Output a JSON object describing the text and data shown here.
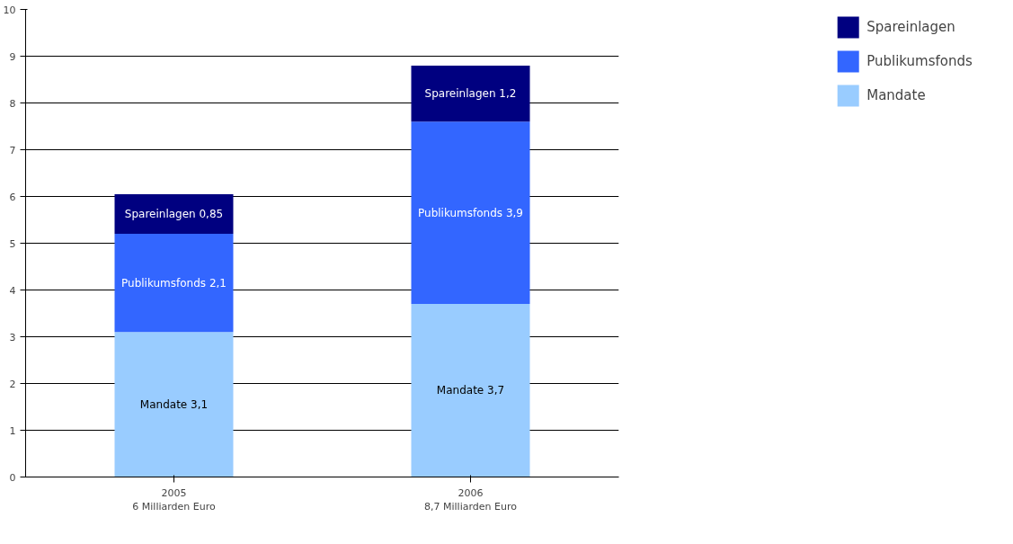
{
  "chart_data": {
    "type": "bar",
    "stacked": true,
    "categories": [
      "2005\n6 Milliarden Euro",
      "2006\n8,7 Milliarden Euro"
    ],
    "series": [
      {
        "name": "Mandate",
        "color": "#99ccff",
        "values": [
          3.1,
          3.7
        ],
        "value_labels": [
          "Mandate 3,1",
          "Mandate 3,7"
        ]
      },
      {
        "name": "Publikumsfonds",
        "color": "#3366ff",
        "values": [
          2.1,
          3.9
        ],
        "value_labels": [
          "Publikumsfonds 2,1",
          "Publikumsfonds 3,9"
        ]
      },
      {
        "name": "Spareinlagen",
        "color": "#000080",
        "values": [
          0.85,
          1.2
        ],
        "value_labels": [
          "Spareinlagen 0,85",
          "Spareinlagen 1,2"
        ]
      }
    ],
    "ylim": [
      0,
      10
    ],
    "yticks": [
      0,
      1,
      2,
      3,
      4,
      5,
      6,
      7,
      8,
      9,
      10
    ],
    "grid": "y",
    "legend": "top right"
  }
}
